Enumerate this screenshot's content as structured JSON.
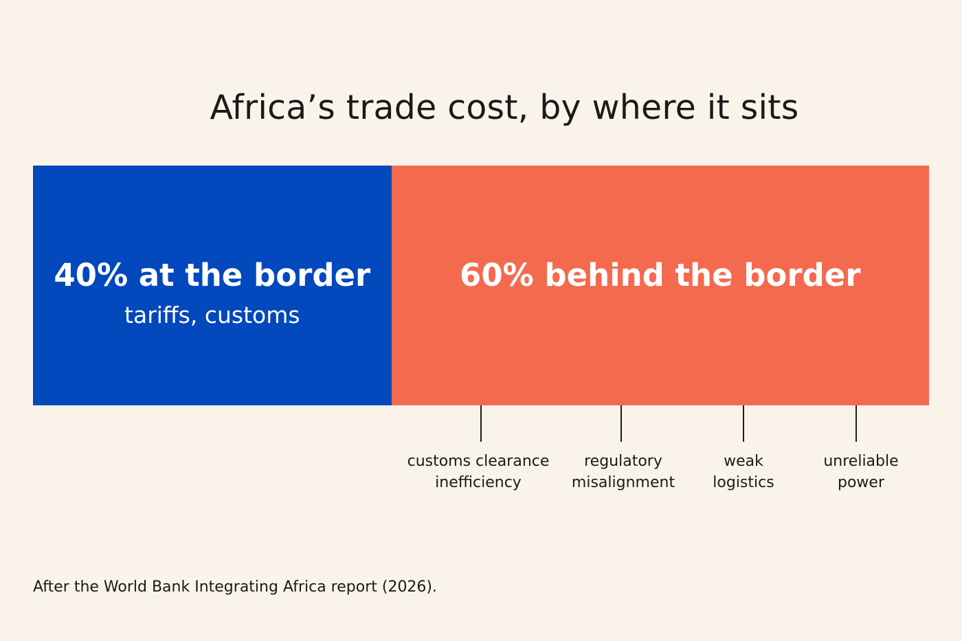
{
  "title": "Africa’s trade cost, by where it sits",
  "chart_data": {
    "type": "bar",
    "orientation": "horizontal-stacked",
    "title": "Africa’s trade cost, by where it sits",
    "unit": "%",
    "series": [
      {
        "value": 40,
        "label": "40% at the border",
        "sublabel": "tariffs, customs",
        "color": "#0348bd"
      },
      {
        "value": 60,
        "label": "60% behind the border",
        "sublabel": "",
        "color": "#f46a4f"
      }
    ],
    "annotations": [
      {
        "line1": "customs clearance",
        "line2": "inefficiency"
      },
      {
        "line1": "regulatory",
        "line2": "misalignment"
      },
      {
        "line1": "weak",
        "line2": "logistics"
      },
      {
        "line1": "unreliable",
        "line2": "power"
      }
    ]
  },
  "source": "After the World Bank Integrating Africa report (2026)."
}
